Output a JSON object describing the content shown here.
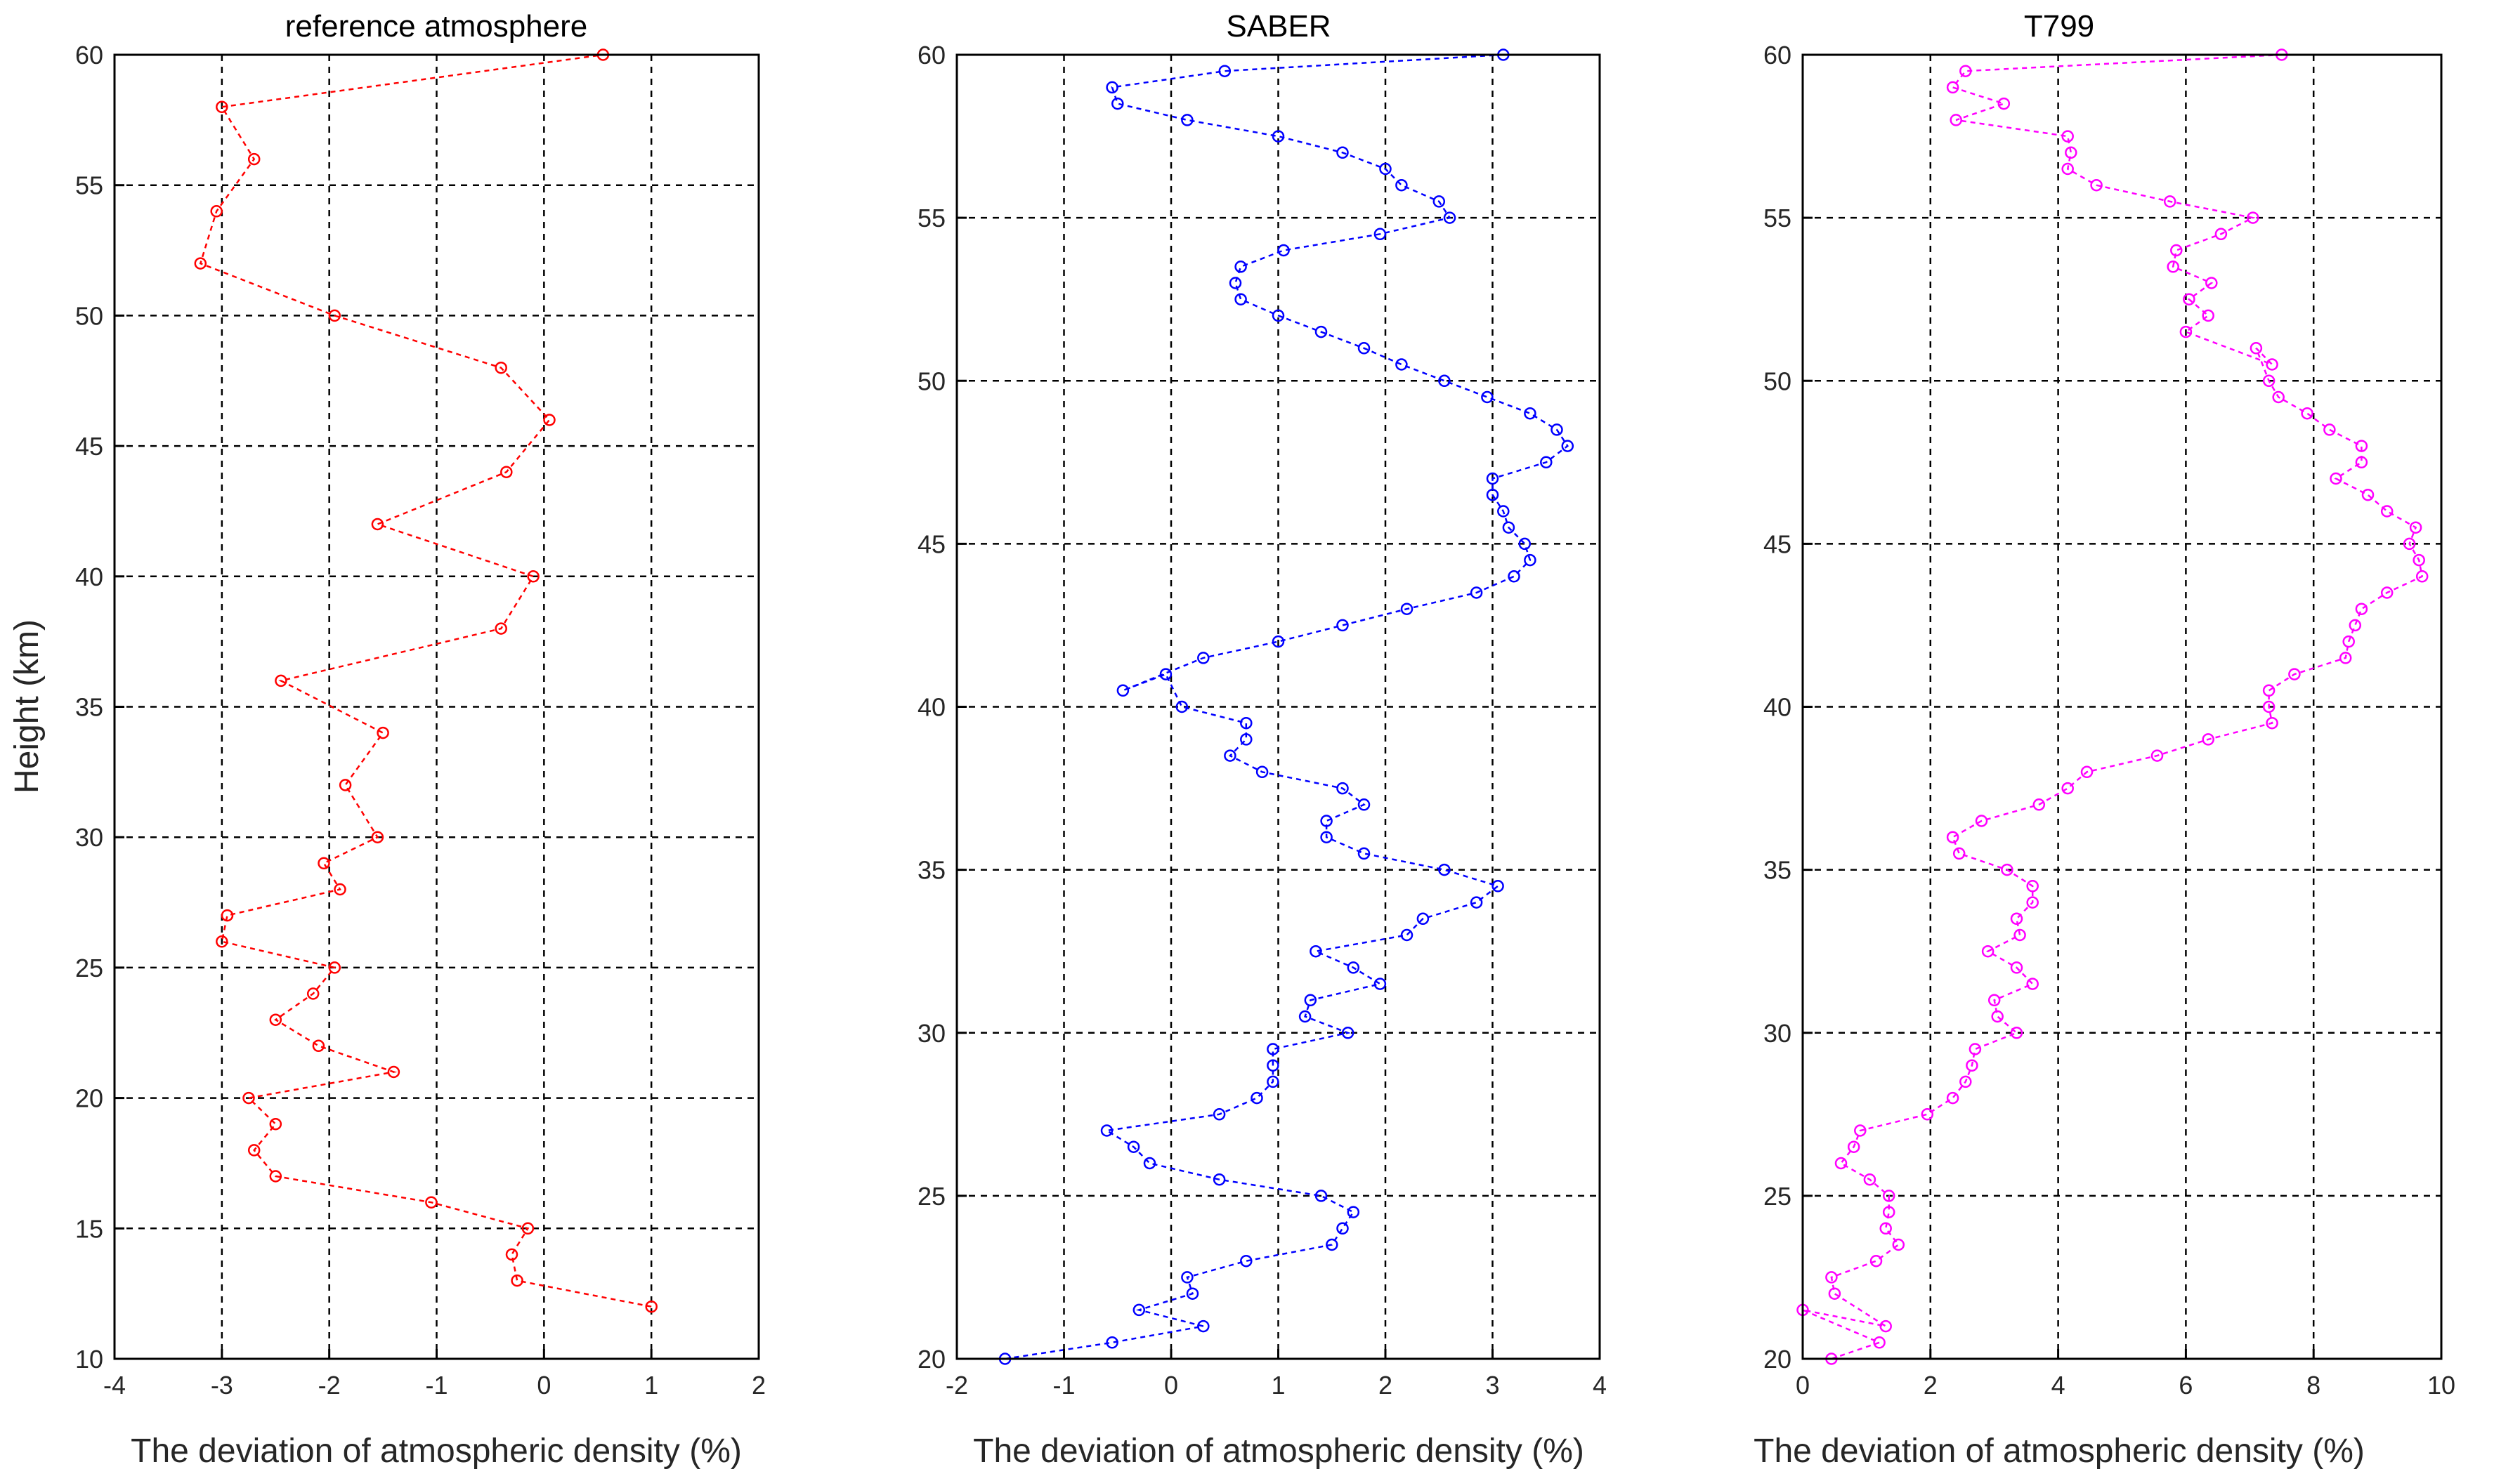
{
  "chart_data": [
    {
      "type": "line",
      "title": "reference atmosphere",
      "xlabel": "The deviation of atmospheric density  (%)",
      "ylabel": "Height (km)",
      "xlim": [
        -4,
        2
      ],
      "ylim": [
        10,
        60
      ],
      "xticks": [
        "-4",
        "-3",
        "-2",
        "-1",
        "0",
        "1",
        "2"
      ],
      "yticks": [
        "10",
        "15",
        "20",
        "25",
        "30",
        "35",
        "40",
        "45",
        "50",
        "55",
        "60"
      ],
      "grid": true,
      "color": "#ff0000",
      "line_style": "dashed",
      "marker": "circle",
      "points": [
        [
          1.0,
          12
        ],
        [
          -0.25,
          13
        ],
        [
          -0.3,
          14
        ],
        [
          -0.15,
          15
        ],
        [
          -1.05,
          16
        ],
        [
          -2.5,
          17
        ],
        [
          -2.7,
          18
        ],
        [
          -2.5,
          19
        ],
        [
          -2.75,
          20
        ],
        [
          -1.4,
          21
        ],
        [
          -2.1,
          22
        ],
        [
          -2.5,
          23
        ],
        [
          -2.15,
          24
        ],
        [
          -1.95,
          25
        ],
        [
          -3.0,
          26
        ],
        [
          -2.95,
          27
        ],
        [
          -1.9,
          28
        ],
        [
          -2.05,
          29
        ],
        [
          -1.55,
          30
        ],
        [
          -1.85,
          32
        ],
        [
          -1.5,
          34
        ],
        [
          -2.45,
          36
        ],
        [
          -0.4,
          38
        ],
        [
          -0.1,
          40
        ],
        [
          -1.55,
          42
        ],
        [
          -0.35,
          44
        ],
        [
          0.05,
          46
        ],
        [
          -0.4,
          48
        ],
        [
          -1.95,
          50
        ],
        [
          -3.2,
          52
        ],
        [
          -3.05,
          54
        ],
        [
          -2.7,
          56
        ],
        [
          -3.0,
          58
        ],
        [
          0.55,
          60
        ]
      ]
    },
    {
      "type": "line",
      "title": "SABER",
      "xlabel": "The deviation of atmospheric density  (%)",
      "ylabel": "",
      "xlim": [
        -2,
        4
      ],
      "ylim": [
        20,
        60
      ],
      "xticks": [
        "-2",
        "-1",
        "0",
        "1",
        "2",
        "3",
        "4"
      ],
      "yticks": [
        "20",
        "25",
        "30",
        "35",
        "40",
        "45",
        "50",
        "55",
        "60"
      ],
      "grid": true,
      "color": "#0000ff",
      "line_style": "dashed",
      "marker": "circle",
      "points": [
        [
          -1.55,
          20
        ],
        [
          -0.55,
          20.5
        ],
        [
          0.3,
          21
        ],
        [
          -0.3,
          21.5
        ],
        [
          0.2,
          22
        ],
        [
          0.15,
          22.5
        ],
        [
          0.7,
          23
        ],
        [
          1.5,
          23.5
        ],
        [
          1.6,
          24
        ],
        [
          1.7,
          24.5
        ],
        [
          1.4,
          25
        ],
        [
          0.45,
          25.5
        ],
        [
          -0.2,
          26
        ],
        [
          -0.35,
          26.5
        ],
        [
          -0.6,
          27
        ],
        [
          0.45,
          27.5
        ],
        [
          0.8,
          28
        ],
        [
          0.95,
          28.5
        ],
        [
          0.95,
          29
        ],
        [
          0.95,
          29.5
        ],
        [
          1.65,
          30
        ],
        [
          1.25,
          30.5
        ],
        [
          1.3,
          31
        ],
        [
          1.95,
          31.5
        ],
        [
          1.7,
          32
        ],
        [
          1.35,
          32.5
        ],
        [
          2.2,
          33
        ],
        [
          2.35,
          33.5
        ],
        [
          2.85,
          34
        ],
        [
          3.05,
          34.5
        ],
        [
          2.55,
          35
        ],
        [
          1.8,
          35.5
        ],
        [
          1.45,
          36
        ],
        [
          1.45,
          36.5
        ],
        [
          1.8,
          37
        ],
        [
          1.6,
          37.5
        ],
        [
          0.85,
          38
        ],
        [
          0.55,
          38.5
        ],
        [
          0.7,
          39
        ],
        [
          0.7,
          39.5
        ],
        [
          0.1,
          40
        ],
        [
          -0.05,
          41
        ],
        [
          -0.45,
          40.5
        ],
        [
          0.3,
          41.5
        ],
        [
          1.0,
          42
        ],
        [
          1.6,
          42.5
        ],
        [
          2.2,
          43
        ],
        [
          2.85,
          43.5
        ],
        [
          3.2,
          44
        ],
        [
          3.35,
          44.5
        ],
        [
          3.3,
          45
        ],
        [
          3.15,
          45.5
        ],
        [
          3.1,
          46
        ],
        [
          3.0,
          46.5
        ],
        [
          3.0,
          47
        ],
        [
          3.5,
          47.5
        ],
        [
          3.7,
          48
        ],
        [
          3.6,
          48.5
        ],
        [
          3.35,
          49
        ],
        [
          2.95,
          49.5
        ],
        [
          2.55,
          50
        ],
        [
          2.15,
          50.5
        ],
        [
          1.8,
          51
        ],
        [
          1.4,
          51.5
        ],
        [
          1.0,
          52
        ],
        [
          0.65,
          52.5
        ],
        [
          0.6,
          53
        ],
        [
          0.65,
          53.5
        ],
        [
          1.05,
          54
        ],
        [
          1.95,
          54.5
        ],
        [
          2.6,
          55
        ],
        [
          2.5,
          55.5
        ],
        [
          2.15,
          56
        ],
        [
          2.0,
          56.5
        ],
        [
          1.6,
          57
        ],
        [
          1.0,
          57.5
        ],
        [
          0.15,
          58
        ],
        [
          -0.5,
          58.5
        ],
        [
          -0.55,
          59
        ],
        [
          0.5,
          59.5
        ],
        [
          3.1,
          60
        ]
      ]
    },
    {
      "type": "line",
      "title": "T799",
      "xlabel": "The deviation of atmospheric density  (%)",
      "ylabel": "",
      "xlim": [
        0,
        10
      ],
      "ylim": [
        20,
        60
      ],
      "xticks": [
        "0",
        "2",
        "4",
        "6",
        "8",
        "10"
      ],
      "yticks": [
        "20",
        "25",
        "30",
        "35",
        "40",
        "45",
        "50",
        "55",
        "60"
      ],
      "grid": true,
      "color": "#ff00ff",
      "line_style": "dashed",
      "marker": "circle",
      "points": [
        [
          0.45,
          20
        ],
        [
          1.2,
          20.5
        ],
        [
          0.0,
          21.5
        ],
        [
          1.3,
          21
        ],
        [
          0.5,
          22
        ],
        [
          0.45,
          22.5
        ],
        [
          1.15,
          23
        ],
        [
          1.5,
          23.5
        ],
        [
          1.3,
          24
        ],
        [
          1.35,
          24.5
        ],
        [
          1.35,
          25
        ],
        [
          1.05,
          25.5
        ],
        [
          0.6,
          26
        ],
        [
          0.8,
          26.5
        ],
        [
          0.9,
          27
        ],
        [
          1.95,
          27.5
        ],
        [
          2.35,
          28
        ],
        [
          2.55,
          28.5
        ],
        [
          2.65,
          29
        ],
        [
          2.7,
          29.5
        ],
        [
          3.35,
          30
        ],
        [
          3.05,
          30.5
        ],
        [
          3.0,
          31
        ],
        [
          3.6,
          31.5
        ],
        [
          3.35,
          32
        ],
        [
          2.9,
          32.5
        ],
        [
          3.4,
          33
        ],
        [
          3.35,
          33.5
        ],
        [
          3.6,
          34
        ],
        [
          3.6,
          34.5
        ],
        [
          3.2,
          35
        ],
        [
          2.45,
          35.5
        ],
        [
          2.35,
          36
        ],
        [
          2.8,
          36.5
        ],
        [
          3.7,
          37
        ],
        [
          4.15,
          37.5
        ],
        [
          4.45,
          38
        ],
        [
          5.55,
          38.5
        ],
        [
          6.35,
          39
        ],
        [
          7.35,
          39.5
        ],
        [
          7.3,
          40
        ],
        [
          7.3,
          40.5
        ],
        [
          7.7,
          41
        ],
        [
          8.5,
          41.5
        ],
        [
          8.55,
          42
        ],
        [
          8.65,
          42.5
        ],
        [
          8.75,
          43
        ],
        [
          9.15,
          43.5
        ],
        [
          9.7,
          44
        ],
        [
          9.65,
          44.5
        ],
        [
          9.5,
          45
        ],
        [
          9.6,
          45.5
        ],
        [
          9.15,
          46
        ],
        [
          8.85,
          46.5
        ],
        [
          8.35,
          47
        ],
        [
          8.75,
          47.5
        ],
        [
          8.75,
          48
        ],
        [
          8.25,
          48.5
        ],
        [
          7.9,
          49
        ],
        [
          7.45,
          49.5
        ],
        [
          7.3,
          50
        ],
        [
          7.1,
          51
        ],
        [
          7.35,
          50.5
        ],
        [
          6.0,
          51.5
        ],
        [
          6.35,
          52
        ],
        [
          6.05,
          52.5
        ],
        [
          6.4,
          53
        ],
        [
          5.8,
          53.5
        ],
        [
          5.85,
          54
        ],
        [
          6.55,
          54.5
        ],
        [
          7.05,
          55
        ],
        [
          5.75,
          55.5
        ],
        [
          4.6,
          56
        ],
        [
          4.15,
          56.5
        ],
        [
          4.2,
          57
        ],
        [
          4.15,
          57.5
        ],
        [
          2.4,
          58
        ],
        [
          3.15,
          58.5
        ],
        [
          2.35,
          59
        ],
        [
          2.55,
          59.5
        ],
        [
          7.5,
          60
        ]
      ]
    }
  ]
}
